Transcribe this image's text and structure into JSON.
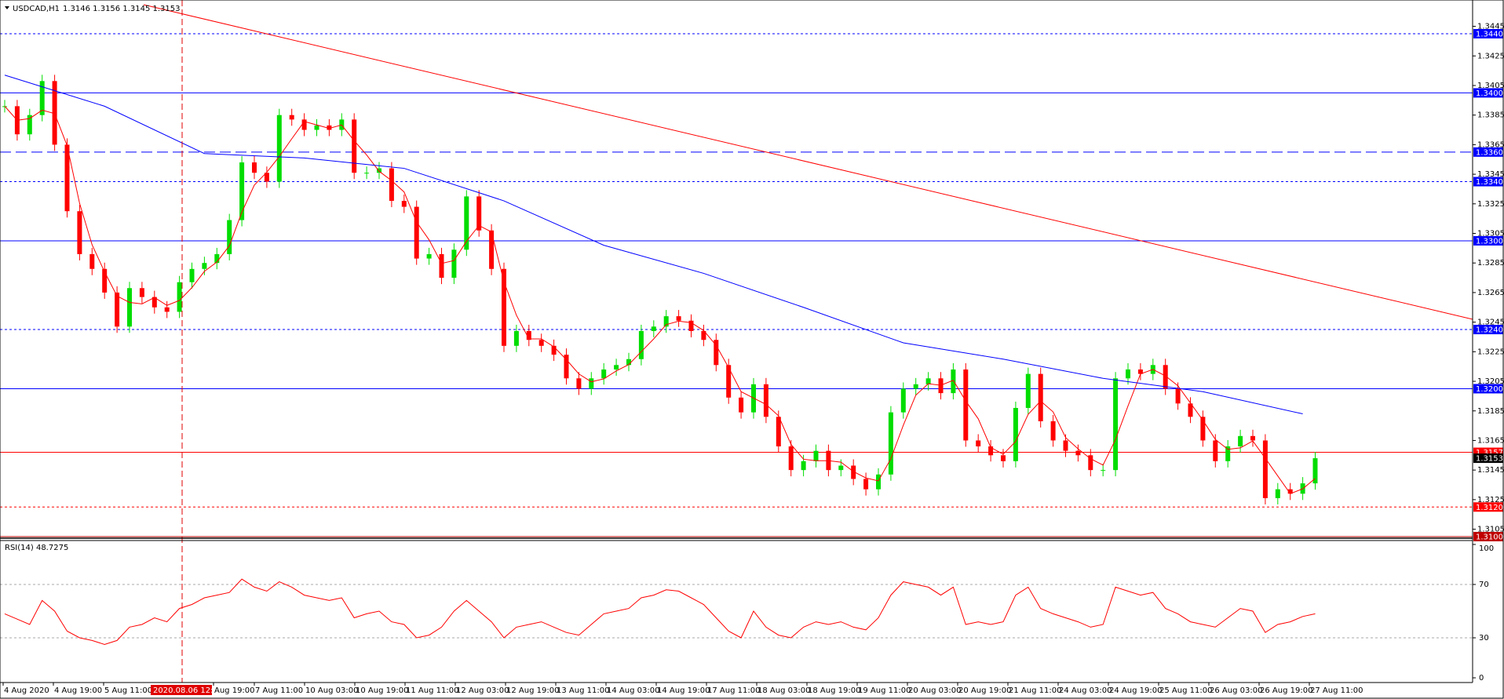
{
  "header": {
    "symbol": "USDCAD,H1",
    "quote": "1.3146 1.3156 1.3145 1.3153"
  },
  "price_axis": {
    "ylim": [
      1.31,
      1.344
    ],
    "ticks": [
      1.3445,
      1.3425,
      1.3405,
      1.3385,
      1.3365,
      1.3345,
      1.3325,
      1.3305,
      1.3285,
      1.3265,
      1.3245,
      1.3225,
      1.3205,
      1.3185,
      1.3165,
      1.3145,
      1.3125,
      1.3105
    ]
  },
  "levels": [
    {
      "value": 1.344,
      "label": "1.3440",
      "color": "#0000ff",
      "style": "dotted"
    },
    {
      "value": 1.34,
      "label": "1.3400",
      "color": "#0000ff",
      "style": "solid"
    },
    {
      "value": 1.336,
      "label": "1.3360",
      "color": "#0000ff",
      "style": "dashed"
    },
    {
      "value": 1.334,
      "label": "1.3340",
      "color": "#0000ff",
      "style": "dotted"
    },
    {
      "value": 1.33,
      "label": "1.3300",
      "color": "#0000ff",
      "style": "solid"
    },
    {
      "value": 1.324,
      "label": "1.3240",
      "color": "#0000ff",
      "style": "dotted"
    },
    {
      "value": 1.32,
      "label": "1.3200",
      "color": "#0000ff",
      "style": "solid"
    },
    {
      "value": 1.3157,
      "label": "1.3157",
      "color": "#ff0000",
      "style": "solid"
    },
    {
      "value": 1.312,
      "label": "1.3120",
      "color": "#ff0000",
      "style": "dotted"
    },
    {
      "value": 1.31,
      "label": "1.3100",
      "color": "#c00000",
      "style": "solid"
    }
  ],
  "current_price": {
    "value": 1.3153,
    "label": "1.3153"
  },
  "closes": [
    1.3391,
    1.3372,
    1.3385,
    1.3408,
    1.3365,
    1.332,
    1.3291,
    1.3281,
    1.3265,
    1.3242,
    1.3268,
    1.3262,
    1.3255,
    1.3252,
    1.3272,
    1.3281,
    1.3285,
    1.3291,
    1.3314,
    1.3353,
    1.3346,
    1.334,
    1.3385,
    1.3382,
    1.3375,
    1.3378,
    1.3375,
    1.3382,
    1.3346,
    1.3346,
    1.3349,
    1.3327,
    1.3323,
    1.3288,
    1.3291,
    1.3275,
    1.3294,
    1.333,
    1.3307,
    1.3281,
    1.3229,
    1.3239,
    1.3233,
    1.3229,
    1.3223,
    1.3207,
    1.32,
    1.3207,
    1.3213,
    1.3216,
    1.322,
    1.3239,
    1.3242,
    1.3249,
    1.3246,
    1.3239,
    1.3233,
    1.3216,
    1.3194,
    1.3184,
    1.3203,
    1.3181,
    1.3161,
    1.3145,
    1.3151,
    1.3158,
    1.3145,
    1.3148,
    1.3139,
    1.3132,
    1.3142,
    1.3184,
    1.32,
    1.3203,
    1.3207,
    1.3197,
    1.3213,
    1.3165,
    1.3161,
    1.3155,
    1.3151,
    1.3187,
    1.321,
    1.3178,
    1.3165,
    1.3158,
    1.3155,
    1.3145,
    1.3145,
    1.3207,
    1.3213,
    1.321,
    1.3216,
    1.32,
    1.319,
    1.3181,
    1.3165,
    1.3151,
    1.3161,
    1.3168,
    1.3165,
    1.3126,
    1.3132,
    1.3129,
    1.3136,
    1.3153
  ],
  "ma_slow": [
    1.3412,
    1.3391,
    1.3359,
    1.3356,
    1.3349,
    1.3327,
    1.3297,
    1.3278,
    1.3255,
    1.3231,
    1.322,
    1.3207,
    1.3198,
    1.3183
  ],
  "rsi": {
    "label": "RSI(14) 48.7275",
    "ticks": [
      100,
      70,
      30,
      0
    ],
    "ylim": [
      0,
      100
    ],
    "values": [
      48,
      44,
      40,
      58,
      50,
      35,
      30,
      28,
      25,
      28,
      38,
      40,
      45,
      42,
      52,
      55,
      60,
      62,
      64,
      74,
      68,
      65,
      72,
      68,
      62,
      60,
      58,
      60,
      45,
      48,
      50,
      42,
      40,
      30,
      32,
      38,
      50,
      58,
      50,
      42,
      30,
      38,
      40,
      42,
      38,
      34,
      32,
      40,
      48,
      50,
      52,
      60,
      62,
      66,
      65,
      60,
      55,
      45,
      35,
      30,
      50,
      38,
      32,
      30,
      38,
      42,
      40,
      42,
      38,
      36,
      45,
      62,
      72,
      70,
      68,
      62,
      68,
      40,
      42,
      40,
      42,
      62,
      68,
      52,
      48,
      45,
      42,
      38,
      40,
      68,
      65,
      62,
      64,
      52,
      48,
      42,
      40,
      38,
      45,
      52,
      50,
      34,
      40,
      42,
      46,
      48
    ]
  },
  "time_axis": {
    "labels": [
      "4 Aug 2020",
      "4 Aug 19:00",
      "5 Aug 11:00",
      "2020.08.06 12:00",
      "Aug 19:00",
      "7 Aug 11:00",
      "10 Aug 03:00",
      "10 Aug 19:00",
      "11 Aug 11:00",
      "12 Aug 03:00",
      "12 Aug 19:00",
      "13 Aug 11:00",
      "14 Aug 03:00",
      "14 Aug 19:00",
      "17 Aug 11:00",
      "18 Aug 03:00",
      "18 Aug 19:00",
      "19 Aug 11:00",
      "20 Aug 03:00",
      "20 Aug 19:00",
      "21 Aug 11:00",
      "24 Aug 03:00",
      "24 Aug 19:00",
      "25 Aug 11:00",
      "26 Aug 03:00",
      "26 Aug 19:00",
      "27 Aug 11:00"
    ]
  }
}
